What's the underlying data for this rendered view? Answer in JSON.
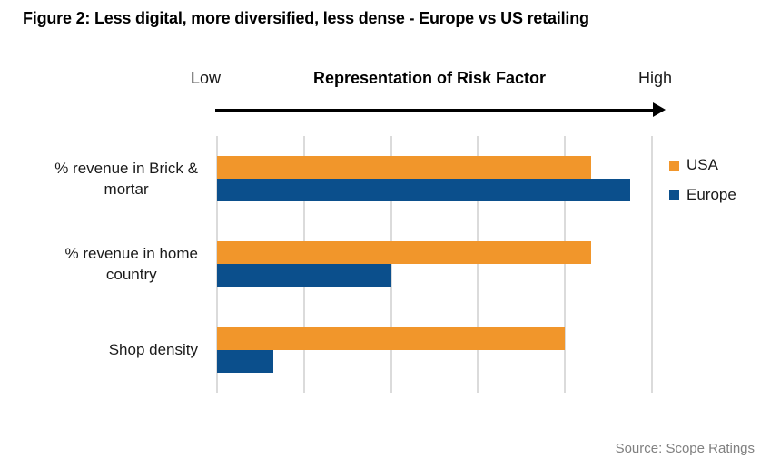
{
  "figure_title": "Figure 2: Less digital, more diversified, less dense - Europe vs US retailing",
  "axis_header": {
    "low": "Low",
    "title": "Representation of Risk Factor",
    "high": "High"
  },
  "source": "Source: Scope Ratings",
  "colors": {
    "usa": "#F1962B",
    "europe": "#0B4F8C",
    "gridline": "#DBDBDB",
    "arrow": "#000000",
    "source_text": "#808080"
  },
  "chart_data": {
    "type": "bar",
    "orientation": "horizontal",
    "title": "Representation of Risk Factor",
    "axis_annotation": {
      "left": "Low",
      "right": "High"
    },
    "categories": [
      "% revenue in Brick & mortar",
      "% revenue in home country",
      "Shop density"
    ],
    "categories_display": [
      "% revenue in Brick &\nmortar",
      "% revenue in home\ncountry",
      "Shop density"
    ],
    "series": [
      {
        "name": "USA",
        "color": "#F1962B",
        "values": [
          86,
          86,
          80
        ]
      },
      {
        "name": "Europe",
        "color": "#0B4F8C",
        "values": [
          95,
          40,
          13
        ]
      }
    ],
    "xlim": [
      0,
      100
    ],
    "gridline_count": 6,
    "grid": true,
    "legend_position": "right",
    "value_axis_labels_shown": false
  }
}
